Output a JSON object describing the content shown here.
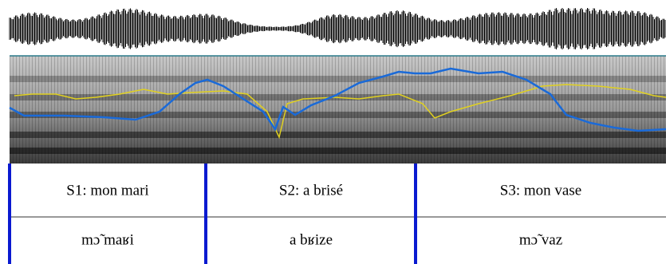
{
  "tiers": [
    {
      "intervals": [
        "S1: mon mari",
        "S2: a brisé",
        "S3: mon vase"
      ]
    },
    {
      "intervals": [
        "mɔ̃ maʁi",
        "a bʁize",
        "mɔ̃ vaz"
      ]
    }
  ]
}
